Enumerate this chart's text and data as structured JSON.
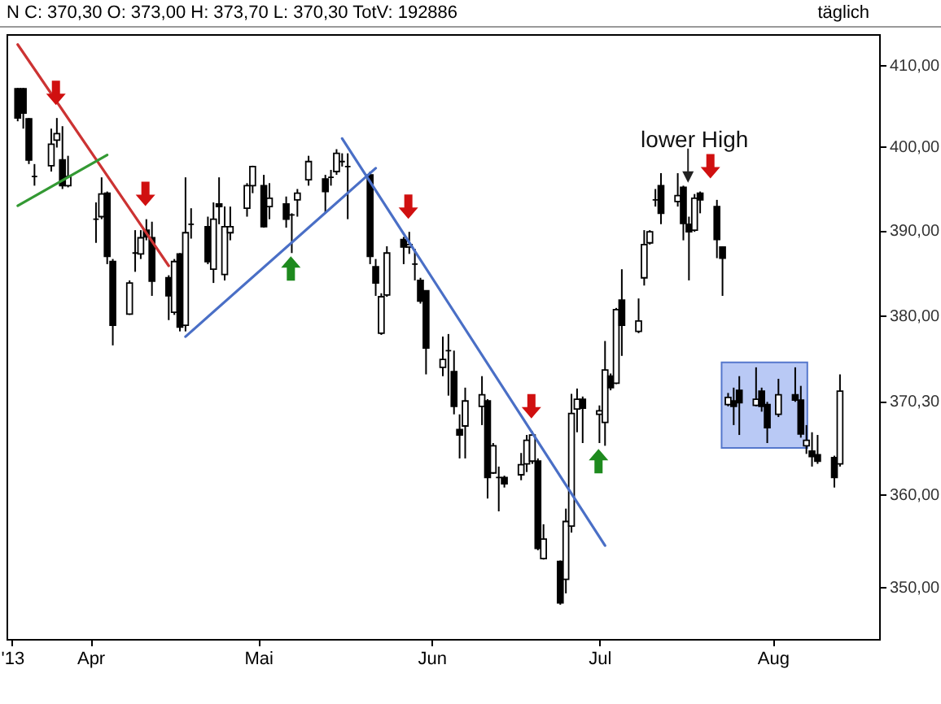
{
  "chart_data": {
    "type": "candlestick",
    "title": "N C: 370,30 O: 373,00 H: 373,70 L: 370,30 TotV: 192886",
    "subtitle": "täglich",
    "x": [
      "2013-03-19",
      "2013-03-20",
      "2013-03-21",
      "2013-03-22",
      "2013-03-25",
      "2013-03-26",
      "2013-03-27",
      "2013-03-28",
      "2013-04-02",
      "2013-04-03",
      "2013-04-04",
      "2013-04-05",
      "2013-04-08",
      "2013-04-09",
      "2013-04-10",
      "2013-04-11",
      "2013-04-12",
      "2013-04-15",
      "2013-04-16",
      "2013-04-17",
      "2013-04-18",
      "2013-04-19",
      "2013-04-22",
      "2013-04-23",
      "2013-04-24",
      "2013-04-25",
      "2013-04-26",
      "2013-04-29",
      "2013-04-30",
      "2013-05-02",
      "2013-05-03",
      "2013-05-06",
      "2013-05-07",
      "2013-05-08",
      "2013-05-10",
      "2013-05-13",
      "2013-05-14",
      "2013-05-15",
      "2013-05-16",
      "2013-05-17",
      "2013-05-21",
      "2013-05-22",
      "2013-05-23",
      "2013-05-24",
      "2013-05-27",
      "2013-05-28",
      "2013-05-29",
      "2013-05-30",
      "2013-05-31",
      "2013-06-03",
      "2013-06-04",
      "2013-06-05",
      "2013-06-06",
      "2013-06-07",
      "2013-06-10",
      "2013-06-11",
      "2013-06-12",
      "2013-06-13",
      "2013-06-14",
      "2013-06-17",
      "2013-06-18",
      "2013-06-19",
      "2013-06-20",
      "2013-06-21",
      "2013-06-24",
      "2013-06-25",
      "2013-06-26",
      "2013-06-27",
      "2013-06-28",
      "2013-07-01",
      "2013-07-02",
      "2013-07-03",
      "2013-07-04",
      "2013-07-05",
      "2013-07-08",
      "2013-07-09",
      "2013-07-10",
      "2013-07-11",
      "2013-07-12",
      "2013-07-15",
      "2013-07-16",
      "2013-07-17",
      "2013-07-18",
      "2013-07-19",
      "2013-07-22",
      "2013-07-23",
      "2013-07-24",
      "2013-07-25",
      "2013-07-26",
      "2013-07-29",
      "2013-07-30",
      "2013-07-31",
      "2013-08-02",
      "2013-08-05",
      "2013-08-06",
      "2013-08-07",
      "2013-08-08",
      "2013-08-09",
      "2013-08-12",
      "2013-08-13"
    ],
    "ohlc": [
      [
        407.1,
        407.2,
        403.1,
        403.5
      ],
      [
        407.1,
        407.2,
        402.2,
        404.1
      ],
      [
        403.4,
        403.5,
        397.9,
        398.4
      ],
      [
        396.4,
        397.9,
        395.3,
        396.4
      ],
      [
        397.7,
        402.2,
        397.0,
        400.3
      ],
      [
        400.8,
        403.5,
        399.9,
        401.6
      ],
      [
        398.4,
        402.5,
        394.9,
        395.3
      ],
      [
        395.3,
        398.9,
        395.1,
        396.4
      ],
      [
        391.3,
        393.3,
        388.5,
        391.3
      ],
      [
        391.6,
        396.3,
        391.3,
        394.3
      ],
      [
        394.4,
        394.6,
        386.0,
        386.9
      ],
      [
        386.3,
        386.6,
        376.6,
        378.9
      ],
      [
        380.2,
        384.1,
        380.1,
        383.8
      ],
      [
        387.3,
        390.0,
        385.1,
        387.3
      ],
      [
        387.2,
        390.0,
        386.6,
        389.1
      ],
      [
        390.0,
        391.3,
        388.8,
        389.2
      ],
      [
        389.1,
        391.0,
        382.3,
        384.0
      ],
      [
        384.4,
        384.7,
        379.5,
        382.3
      ],
      [
        380.4,
        386.6,
        380.1,
        386.3
      ],
      [
        387.2,
        387.3,
        378.2,
        378.7
      ],
      [
        378.9,
        396.3,
        378.2,
        389.7
      ],
      [
        390.7,
        392.6,
        389.0,
        390.7
      ],
      [
        390.4,
        391.6,
        386.0,
        386.3
      ],
      [
        385.4,
        393.3,
        383.8,
        391.3
      ],
      [
        393.1,
        396.3,
        390.7,
        392.8
      ],
      [
        384.8,
        392.8,
        384.1,
        390.4
      ],
      [
        389.7,
        392.8,
        388.8,
        390.4
      ],
      [
        392.6,
        395.6,
        391.6,
        395.3
      ],
      [
        395.3,
        397.7,
        394.4,
        397.6
      ],
      [
        395.3,
        396.6,
        390.3,
        390.4
      ],
      [
        392.8,
        395.6,
        391.3,
        393.8
      ],
      [
        393.1,
        394.0,
        390.3,
        391.3
      ],
      [
        391.8,
        392.0,
        387.3,
        391.8
      ],
      [
        393.6,
        394.9,
        391.6,
        394.4
      ],
      [
        396.0,
        398.9,
        395.3,
        398.2
      ],
      [
        396.1,
        396.6,
        392.0,
        394.6
      ],
      [
        396.3,
        397.2,
        395.3,
        396.3
      ],
      [
        397.0,
        399.7,
        396.6,
        399.2
      ],
      [
        398.2,
        399.2,
        397.6,
        398.2
      ],
      [
        397.6,
        399.2,
        391.3,
        397.6
      ],
      [
        396.6,
        397.0,
        386.0,
        386.9
      ],
      [
        385.7,
        386.6,
        382.3,
        383.8
      ],
      [
        378.0,
        382.6,
        377.8,
        382.2
      ],
      [
        382.4,
        388.1,
        382.2,
        387.3
      ],
      [
        388.9,
        389.2,
        386.0,
        388.0
      ],
      [
        388.0,
        389.8,
        387.2,
        388.3
      ],
      [
        386.0,
        387.8,
        384.1,
        386.0
      ],
      [
        384.1,
        384.4,
        381.4,
        381.7
      ],
      [
        382.9,
        382.9,
        373.3,
        376.3
      ],
      [
        374.1,
        377.6,
        373.1,
        375.0
      ],
      [
        376.0,
        377.9,
        370.9,
        376.0
      ],
      [
        373.6,
        376.0,
        368.8,
        369.7
      ],
      [
        367.1,
        368.8,
        363.9,
        366.5
      ],
      [
        367.5,
        371.8,
        363.9,
        370.3
      ],
      [
        369.7,
        373.1,
        367.6,
        371.0
      ],
      [
        370.3,
        370.5,
        359.5,
        361.8
      ],
      [
        362.3,
        365.6,
        362.2,
        365.3
      ],
      [
        361.8,
        363.0,
        358.1,
        361.8
      ],
      [
        361.8,
        362.0,
        360.7,
        361.1
      ],
      [
        362.1,
        364.5,
        361.5,
        363.2
      ],
      [
        363.3,
        366.5,
        362.4,
        365.9
      ],
      [
        363.6,
        366.9,
        363.3,
        366.5
      ],
      [
        363.6,
        363.9,
        353.9,
        354.1
      ],
      [
        353.0,
        356.7,
        352.9,
        355.1
      ],
      [
        352.7,
        352.8,
        348.1,
        348.3
      ],
      [
        350.8,
        358.4,
        349.3,
        357.0
      ],
      [
        356.5,
        371.1,
        355.8,
        368.9
      ],
      [
        369.4,
        371.7,
        366.8,
        370.5
      ],
      [
        370.5,
        370.8,
        365.6,
        369.5
      ],
      [
        368.8,
        369.8,
        365.6,
        369.2
      ],
      [
        367.9,
        377.1,
        365.3,
        373.8
      ],
      [
        373.1,
        373.4,
        371.5,
        371.8
      ],
      [
        372.3,
        380.9,
        372.2,
        380.7
      ],
      [
        381.8,
        385.4,
        375.4,
        378.9
      ],
      [
        378.2,
        382.0,
        378.0,
        379.4
      ],
      [
        384.4,
        390.0,
        383.5,
        388.3
      ],
      [
        388.5,
        390.0,
        388.3,
        389.8
      ],
      [
        393.6,
        394.9,
        392.8,
        393.6
      ],
      [
        395.3,
        396.8,
        390.7,
        392.0
      ],
      [
        393.4,
        396.8,
        392.8,
        394.1
      ],
      [
        395.1,
        395.3,
        388.8,
        390.8
      ],
      [
        390.7,
        391.6,
        384.1,
        389.8
      ],
      [
        390.0,
        394.3,
        389.8,
        393.8
      ],
      [
        394.4,
        394.6,
        392.0,
        393.6
      ],
      [
        392.8,
        393.6,
        386.7,
        388.9
      ],
      [
        388.0,
        388.1,
        382.3,
        386.7
      ],
      [
        369.9,
        371.2,
        369.7,
        370.7
      ],
      [
        370.3,
        371.8,
        367.6,
        369.7
      ],
      [
        371.5,
        373.1,
        366.5,
        370.1
      ],
      [
        369.8,
        374.1,
        369.7,
        370.5
      ],
      [
        371.4,
        371.8,
        369.1,
        369.7
      ],
      [
        369.9,
        370.2,
        365.6,
        367.3
      ],
      [
        368.8,
        372.8,
        368.5,
        371.0
      ],
      [
        371.0,
        374.1,
        370.2,
        370.4
      ],
      [
        370.4,
        372.0,
        366.2,
        366.6
      ],
      [
        365.3,
        367.6,
        364.4,
        365.9
      ],
      [
        364.7,
        366.8,
        363.0,
        364.1
      ],
      [
        364.3,
        366.5,
        363.3,
        363.6
      ],
      [
        364.0,
        364.2,
        360.7,
        361.8
      ],
      [
        363.3,
        373.3,
        363.0,
        371.4
      ]
    ],
    "series": [
      {
        "type": "line",
        "color": "#cc3333",
        "x": [
          "2013-03-19",
          "2013-04-15"
        ],
        "values": [
          412.6,
          385.8
        ]
      },
      {
        "type": "line",
        "color": "#339933",
        "x": [
          "2013-03-19",
          "2013-04-04"
        ],
        "values": [
          392.9,
          399.0
        ]
      },
      {
        "type": "line",
        "color": "#4a6fc6",
        "x": [
          "2013-04-18",
          "2013-05-22"
        ],
        "values": [
          377.6,
          397.4
        ]
      },
      {
        "type": "line",
        "color": "#4a6fc6",
        "x": [
          "2013-05-16",
          "2013-07-02"
        ],
        "values": [
          401.0,
          354.4
        ]
      }
    ],
    "log": true,
    "xlim": [
      "2013-03-17",
      "2013-08-20"
    ],
    "xticks": [
      {
        "value": "2013-03-18",
        "label": "'13"
      },
      {
        "value": "2013-04-01",
        "label": "Apr"
      },
      {
        "value": "2013-05-01",
        "label": "Mai"
      },
      {
        "value": "2013-06-01",
        "label": "Jun"
      },
      {
        "value": "2013-07-01",
        "label": "Jul"
      },
      {
        "value": "2013-08-01",
        "label": "Aug"
      }
    ],
    "ylim": [
      344.5,
      413.9
    ],
    "yticks": [
      {
        "value": 350,
        "label": "350,00"
      },
      {
        "value": 360,
        "label": "360,00"
      },
      {
        "value": 370.3,
        "label": "370,30"
      },
      {
        "value": 380,
        "label": "380,00"
      },
      {
        "value": 390,
        "label": "390,00"
      },
      {
        "value": 400,
        "label": "400,00"
      },
      {
        "value": 410,
        "label": "410,00"
      }
    ],
    "annotations": [
      {
        "text": "lower High",
        "x": "2013-07-18",
        "y": 394.3
      }
    ]
  }
}
